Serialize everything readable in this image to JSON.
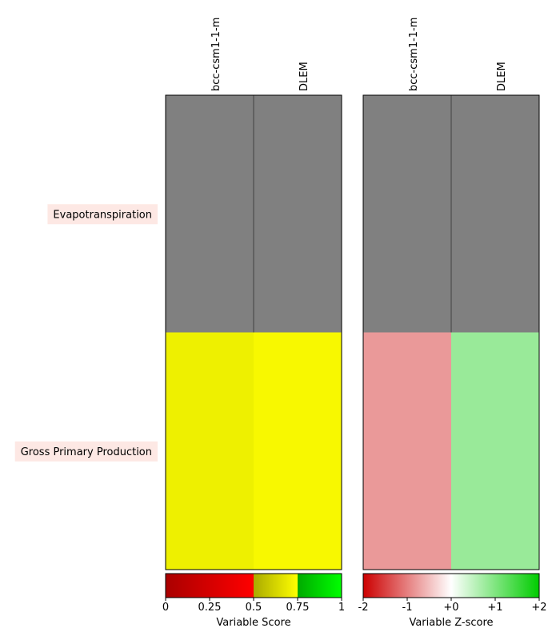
{
  "chart_data": {
    "type": "heatmap",
    "rows": [
      "Evapotranspiration",
      "Gross Primary Production"
    ],
    "columns": [
      "bcc-csm1-1-m",
      "DLEM"
    ],
    "panels": [
      {
        "name": "score",
        "cell_colors": [
          [
            "#808080",
            "#808080"
          ],
          [
            "#eef000",
            "#f8f800"
          ]
        ],
        "colorbar": {
          "label": "Variable Score",
          "ticks": [
            "0",
            "0.25",
            "0.5",
            "0.75",
            "1"
          ],
          "tick_values": [
            0,
            0.25,
            0.5,
            0.75,
            1
          ],
          "range": [
            0,
            1
          ],
          "segments": [
            {
              "from": 0,
              "to": 0.5,
              "colors": [
                "#aa0000",
                "#ff0000"
              ]
            },
            {
              "from": 0.5,
              "to": 0.75,
              "colors": [
                "#aaaa00",
                "#ffff00"
              ]
            },
            {
              "from": 0.75,
              "to": 1,
              "colors": [
                "#00aa00",
                "#00ff00"
              ]
            }
          ]
        }
      },
      {
        "name": "z-score",
        "cell_colors": [
          [
            "#808080",
            "#808080"
          ],
          [
            "#ea9999",
            "#99ea99"
          ]
        ],
        "colorbar": {
          "label": "Variable Z-score",
          "ticks": [
            "-2",
            "-1",
            "+0",
            "+1",
            "+2"
          ],
          "tick_values": [
            -2,
            -1,
            0,
            1,
            2
          ],
          "range": [
            -2,
            2
          ],
          "segments": [
            {
              "from": -2,
              "to": 0,
              "colors": [
                "#cc0000",
                "#ffffff"
              ]
            },
            {
              "from": 0,
              "to": 2,
              "colors": [
                "#ffffff",
                "#00cc00"
              ]
            }
          ]
        }
      }
    ],
    "missing_color": "#808080"
  }
}
